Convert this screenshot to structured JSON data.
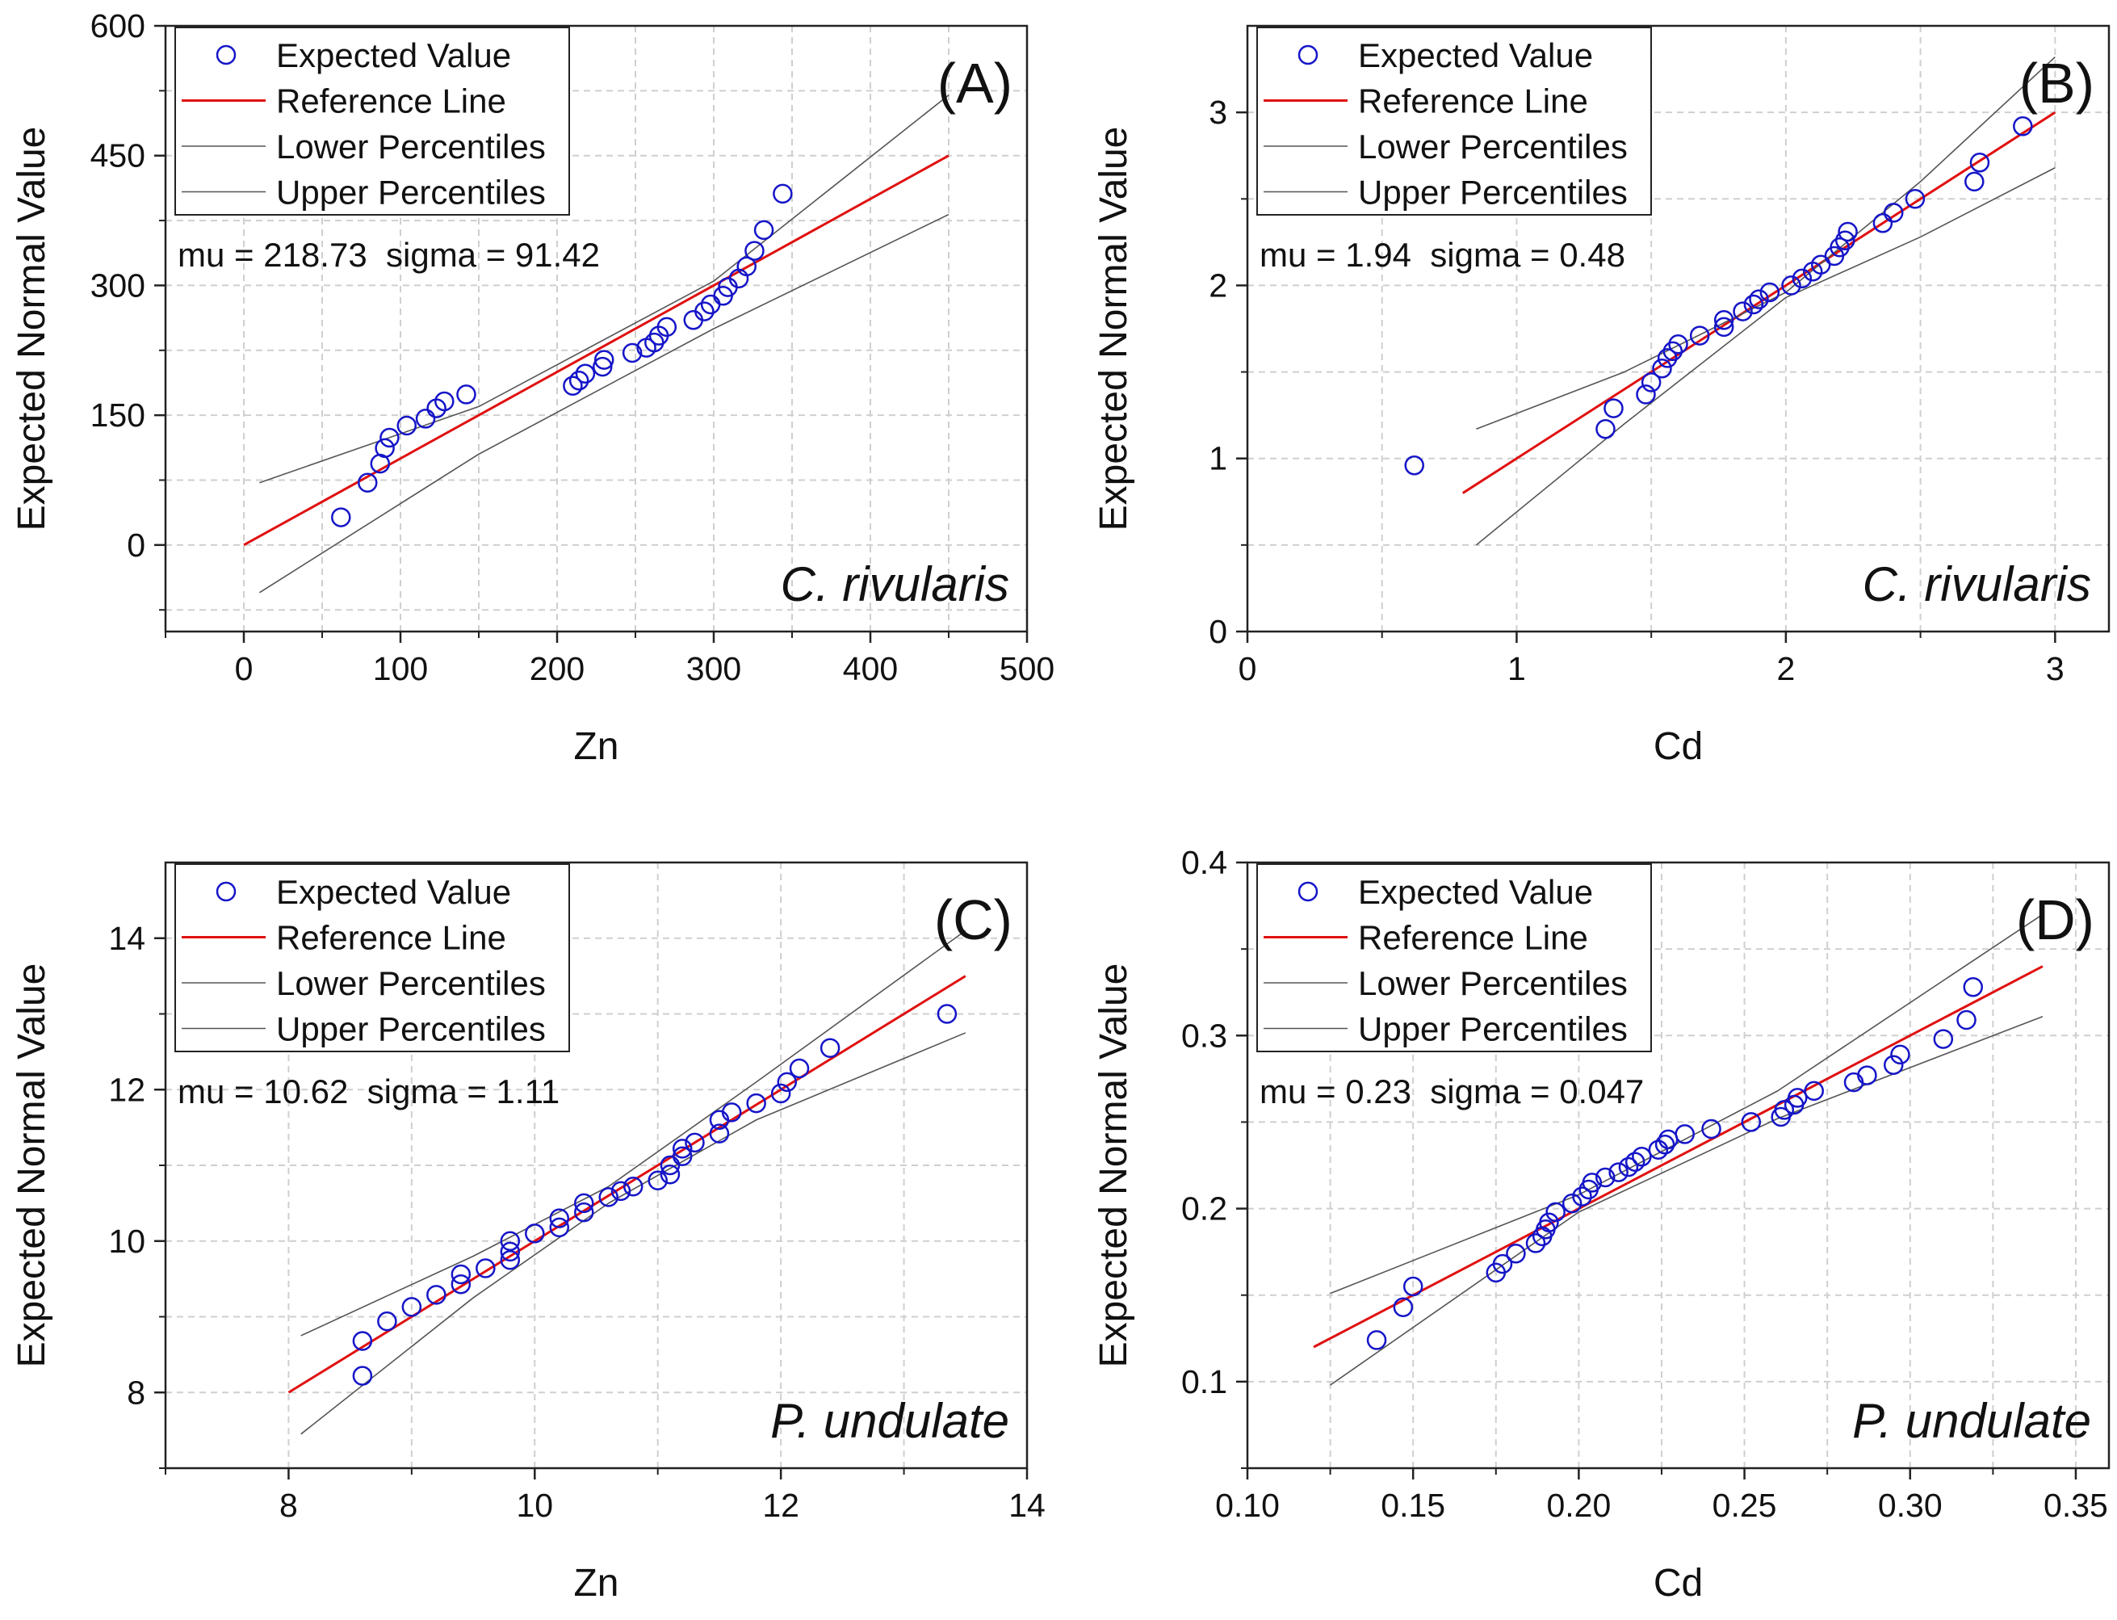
{
  "colors": {
    "points": "#1515c8",
    "reference_line": "#e01010",
    "percentile_lines": "#555555",
    "grid": "#cfcfcf",
    "frame": "#222222"
  },
  "chart_data": [
    {
      "type": "scatter",
      "panel_label": "(A)",
      "species": "C. rivularis",
      "stats": "mu = 218.73  sigma = 91.42",
      "xlabel": "Zn",
      "ylabel": "Expected Normal Value",
      "xlim": [
        -50,
        500
      ],
      "ylim": [
        -100,
        600
      ],
      "xticks": [
        0,
        100,
        200,
        300,
        400,
        500
      ],
      "xtick_labels": [
        "0",
        "100",
        "200",
        "300",
        "400",
        "500"
      ],
      "yticks": [
        0,
        150,
        300,
        450,
        600
      ],
      "ytick_labels": [
        "0",
        "150",
        "300",
        "450",
        "600"
      ],
      "grid": true,
      "legend_position": "top-left",
      "legend": [
        "Expected Value",
        "Reference Line",
        "Lower Percentiles",
        "Upper Percentiles"
      ],
      "series": [
        {
          "name": "Expected Value",
          "kind": "points",
          "x": [
            62,
            79,
            87,
            90,
            93,
            104,
            116,
            123,
            128,
            142,
            210,
            214,
            218,
            229,
            230,
            248,
            257,
            262,
            265,
            270,
            287,
            294,
            298,
            306,
            309,
            316,
            321,
            326,
            332,
            344
          ],
          "y": [
            32,
            72,
            94,
            112,
            124,
            138,
            146,
            158,
            166,
            174,
            184,
            190,
            198,
            206,
            214,
            222,
            228,
            234,
            242,
            252,
            260,
            270,
            278,
            288,
            298,
            308,
            322,
            340,
            364,
            406
          ]
        },
        {
          "name": "Reference Line",
          "kind": "line",
          "x": [
            0,
            450
          ],
          "y": [
            0,
            450
          ]
        },
        {
          "name": "Lower Percentiles",
          "kind": "curve",
          "x": [
            10,
            150,
            300,
            450
          ],
          "y": [
            -55,
            105,
            250,
            382
          ]
        },
        {
          "name": "Upper Percentiles",
          "kind": "curve",
          "x": [
            10,
            150,
            300,
            450
          ],
          "y": [
            72,
            160,
            305,
            520
          ]
        }
      ]
    },
    {
      "type": "scatter",
      "panel_label": "(B)",
      "species": "C. rivularis",
      "stats": "mu = 1.94  sigma = 0.48",
      "xlabel": "Cd",
      "ylabel": "Expected Normal Value",
      "xlim": [
        0,
        3.2
      ],
      "ylim": [
        0,
        3.5
      ],
      "xticks": [
        0,
        1,
        2,
        3
      ],
      "xtick_labels": [
        "0",
        "1",
        "2",
        "3"
      ],
      "yticks": [
        0,
        1,
        2,
        3
      ],
      "ytick_labels": [
        "0",
        "1",
        "2",
        "3"
      ],
      "grid": true,
      "legend_position": "top-left",
      "legend": [
        "Expected Value",
        "Reference Line",
        "Lower Percentiles",
        "Upper Percentiles"
      ],
      "series": [
        {
          "name": "Expected Value",
          "kind": "points",
          "x": [
            0.62,
            1.33,
            1.36,
            1.48,
            1.5,
            1.54,
            1.56,
            1.58,
            1.6,
            1.68,
            1.77,
            1.77,
            1.84,
            1.88,
            1.9,
            1.94,
            2.02,
            2.06,
            2.1,
            2.13,
            2.18,
            2.2,
            2.22,
            2.23,
            2.36,
            2.4,
            2.48,
            2.7,
            2.72,
            2.88
          ],
          "y": [
            0.96,
            1.17,
            1.29,
            1.37,
            1.44,
            1.52,
            1.58,
            1.62,
            1.66,
            1.71,
            1.76,
            1.8,
            1.85,
            1.89,
            1.92,
            1.96,
            2.0,
            2.04,
            2.08,
            2.12,
            2.17,
            2.22,
            2.26,
            2.31,
            2.36,
            2.42,
            2.5,
            2.6,
            2.71,
            2.92
          ]
        },
        {
          "name": "Reference Line",
          "kind": "line",
          "x": [
            0.8,
            3.0
          ],
          "y": [
            0.8,
            3.0
          ]
        },
        {
          "name": "Lower Percentiles",
          "kind": "curve",
          "x": [
            0.85,
            1.4,
            2.0,
            2.5,
            3.0
          ],
          "y": [
            0.5,
            1.2,
            1.93,
            2.28,
            2.68
          ]
        },
        {
          "name": "Upper Percentiles",
          "kind": "curve",
          "x": [
            0.85,
            1.4,
            2.0,
            2.5,
            3.0
          ],
          "y": [
            1.17,
            1.5,
            1.96,
            2.6,
            3.32
          ]
        }
      ]
    },
    {
      "type": "scatter",
      "panel_label": "(C)",
      "species": "P. undulate",
      "stats": "mu = 10.62  sigma = 1.11",
      "xlabel": "Zn",
      "ylabel": "Expected Normal Value",
      "xlim": [
        7,
        14
      ],
      "ylim": [
        7,
        15
      ],
      "xticks": [
        8,
        10,
        12,
        14
      ],
      "xtick_labels": [
        "8",
        "10",
        "12",
        "14"
      ],
      "yticks": [
        8,
        10,
        12,
        14
      ],
      "ytick_labels": [
        "8",
        "10",
        "12",
        "14"
      ],
      "grid": true,
      "legend_position": "top-left",
      "legend": [
        "Expected Value",
        "Reference Line",
        "Lower Percentiles",
        "Upper Percentiles"
      ],
      "series": [
        {
          "name": "Expected Value",
          "kind": "points",
          "x": [
            8.6,
            8.6,
            8.8,
            9.0,
            9.2,
            9.4,
            9.4,
            9.6,
            9.8,
            9.8,
            9.8,
            10.0,
            10.2,
            10.2,
            10.4,
            10.4,
            10.6,
            10.7,
            10.8,
            11.0,
            11.1,
            11.1,
            11.2,
            11.2,
            11.3,
            11.5,
            11.5,
            11.6,
            11.8,
            12.0,
            12.05,
            12.15,
            12.4,
            13.35
          ],
          "y": [
            8.22,
            8.68,
            8.94,
            9.13,
            9.29,
            9.43,
            9.56,
            9.64,
            9.75,
            9.86,
            10.0,
            10.1,
            10.18,
            10.3,
            10.38,
            10.5,
            10.58,
            10.66,
            10.72,
            10.8,
            10.88,
            11.0,
            11.12,
            11.22,
            11.3,
            11.42,
            11.6,
            11.7,
            11.82,
            11.95,
            12.1,
            12.28,
            12.55,
            13.0
          ]
        },
        {
          "name": "Reference Line",
          "kind": "line",
          "x": [
            8.0,
            13.5
          ],
          "y": [
            8.0,
            13.5
          ]
        },
        {
          "name": "Lower Percentiles",
          "kind": "curve",
          "x": [
            8.1,
            9.5,
            10.6,
            11.8,
            13.5
          ],
          "y": [
            7.45,
            9.25,
            10.5,
            11.6,
            12.75
          ]
        },
        {
          "name": "Upper Percentiles",
          "kind": "curve",
          "x": [
            8.1,
            9.5,
            10.6,
            11.8,
            13.5
          ],
          "y": [
            8.75,
            9.8,
            10.72,
            12.1,
            14.1
          ]
        }
      ]
    },
    {
      "type": "scatter",
      "panel_label": "(D)",
      "species": "P. undulate",
      "stats": "mu = 0.23  sigma = 0.047",
      "xlabel": "Cd",
      "ylabel": "Expected Normal Value",
      "xlim": [
        0.1,
        0.36
      ],
      "ylim": [
        0.05,
        0.4
      ],
      "xticks": [
        0.1,
        0.15,
        0.2,
        0.25,
        0.3,
        0.35
      ],
      "xtick_labels": [
        "0.10",
        "0.15",
        "0.20",
        "0.25",
        "0.30",
        "0.35"
      ],
      "yticks": [
        0.1,
        0.2,
        0.3,
        0.4
      ],
      "ytick_labels": [
        "0.1",
        "0.2",
        "0.3",
        "0.4"
      ],
      "grid": true,
      "legend_position": "top-left",
      "legend": [
        "Expected Value",
        "Reference Line",
        "Lower Percentiles",
        "Upper Percentiles"
      ],
      "series": [
        {
          "name": "Expected Value",
          "kind": "points",
          "x": [
            0.139,
            0.147,
            0.15,
            0.175,
            0.177,
            0.181,
            0.187,
            0.189,
            0.19,
            0.191,
            0.193,
            0.198,
            0.201,
            0.203,
            0.204,
            0.208,
            0.212,
            0.215,
            0.217,
            0.219,
            0.224,
            0.226,
            0.227,
            0.232,
            0.24,
            0.252,
            0.261,
            0.262,
            0.265,
            0.266,
            0.271,
            0.283,
            0.287,
            0.295,
            0.297,
            0.31,
            0.317,
            0.319
          ],
          "y": [
            0.124,
            0.143,
            0.155,
            0.163,
            0.168,
            0.174,
            0.18,
            0.184,
            0.188,
            0.192,
            0.198,
            0.203,
            0.207,
            0.211,
            0.215,
            0.218,
            0.221,
            0.224,
            0.227,
            0.23,
            0.234,
            0.237,
            0.24,
            0.243,
            0.246,
            0.25,
            0.253,
            0.257,
            0.26,
            0.264,
            0.268,
            0.273,
            0.277,
            0.283,
            0.289,
            0.298,
            0.309,
            0.328
          ]
        },
        {
          "name": "Reference Line",
          "kind": "line",
          "x": [
            0.12,
            0.34
          ],
          "y": [
            0.12,
            0.34
          ]
        },
        {
          "name": "Lower Percentiles",
          "kind": "curve",
          "x": [
            0.125,
            0.2,
            0.26,
            0.34
          ],
          "y": [
            0.098,
            0.198,
            0.252,
            0.311
          ]
        },
        {
          "name": "Upper Percentiles",
          "kind": "curve",
          "x": [
            0.125,
            0.2,
            0.26,
            0.34
          ],
          "y": [
            0.151,
            0.208,
            0.268,
            0.37
          ]
        }
      ]
    }
  ]
}
